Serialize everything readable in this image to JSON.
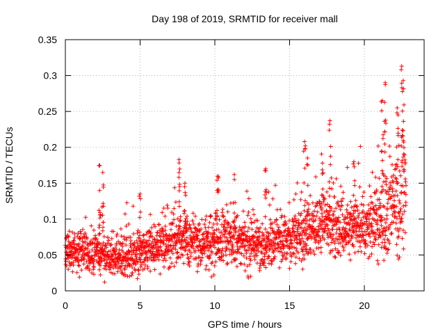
{
  "chart_data": {
    "type": "scatter",
    "title": "Day 198 of 2019, SRMTID for receiver mall",
    "xlabel": "GPS time / hours",
    "ylabel": "SRMTID / TECUs",
    "xlim": [
      0,
      24
    ],
    "ylim": [
      0,
      0.35
    ],
    "grid": true,
    "marker": "+",
    "color": "#ff0000",
    "x_ticks": [
      0,
      5,
      10,
      15,
      20
    ],
    "x_tick_labels": [
      "0",
      "5",
      "10",
      "15",
      "20"
    ],
    "y_ticks": [
      0,
      0.05,
      0.1,
      0.15,
      0.2,
      0.25,
      0.3,
      0.35
    ],
    "y_tick_labels": [
      "0",
      "0.05",
      "0.1",
      "0.15",
      "0.2",
      "0.25",
      "0.3",
      "0.35"
    ],
    "x_range_data": [
      0.0,
      22.8
    ],
    "trend": [
      [
        0.0,
        0.06
      ],
      [
        1.0,
        0.055
      ],
      [
        2.0,
        0.052
      ],
      [
        3.0,
        0.047
      ],
      [
        4.0,
        0.045
      ],
      [
        5.0,
        0.05
      ],
      [
        6.0,
        0.058
      ],
      [
        7.0,
        0.066
      ],
      [
        8.0,
        0.07
      ],
      [
        9.0,
        0.063
      ],
      [
        10.0,
        0.07
      ],
      [
        11.0,
        0.074
      ],
      [
        12.0,
        0.062
      ],
      [
        13.0,
        0.064
      ],
      [
        14.0,
        0.072
      ],
      [
        15.0,
        0.075
      ],
      [
        16.0,
        0.08
      ],
      [
        17.0,
        0.095
      ],
      [
        18.0,
        0.09
      ],
      [
        19.0,
        0.085
      ],
      [
        20.0,
        0.09
      ],
      [
        21.0,
        0.1
      ],
      [
        22.0,
        0.12
      ],
      [
        22.8,
        0.15
      ]
    ],
    "spread": [
      [
        0.0,
        0.025
      ],
      [
        5.0,
        0.025
      ],
      [
        10.0,
        0.03
      ],
      [
        15.0,
        0.03
      ],
      [
        18.0,
        0.035
      ],
      [
        20.0,
        0.035
      ],
      [
        22.0,
        0.06
      ],
      [
        22.8,
        0.08
      ]
    ],
    "peaks": [
      {
        "x": 2.3,
        "y": 0.175
      },
      {
        "x": 2.5,
        "y": 0.165
      },
      {
        "x": 5.0,
        "y": 0.135
      },
      {
        "x": 7.6,
        "y": 0.183
      },
      {
        "x": 8.0,
        "y": 0.15
      },
      {
        "x": 10.2,
        "y": 0.16
      },
      {
        "x": 11.3,
        "y": 0.162
      },
      {
        "x": 13.4,
        "y": 0.17
      },
      {
        "x": 16.0,
        "y": 0.208
      },
      {
        "x": 16.2,
        "y": 0.185
      },
      {
        "x": 17.2,
        "y": 0.178
      },
      {
        "x": 17.7,
        "y": 0.237
      },
      {
        "x": 19.3,
        "y": 0.18
      },
      {
        "x": 21.2,
        "y": 0.265
      },
      {
        "x": 21.4,
        "y": 0.29
      },
      {
        "x": 22.2,
        "y": 0.255
      },
      {
        "x": 22.5,
        "y": 0.313
      },
      {
        "x": 22.6,
        "y": 0.293
      }
    ]
  }
}
